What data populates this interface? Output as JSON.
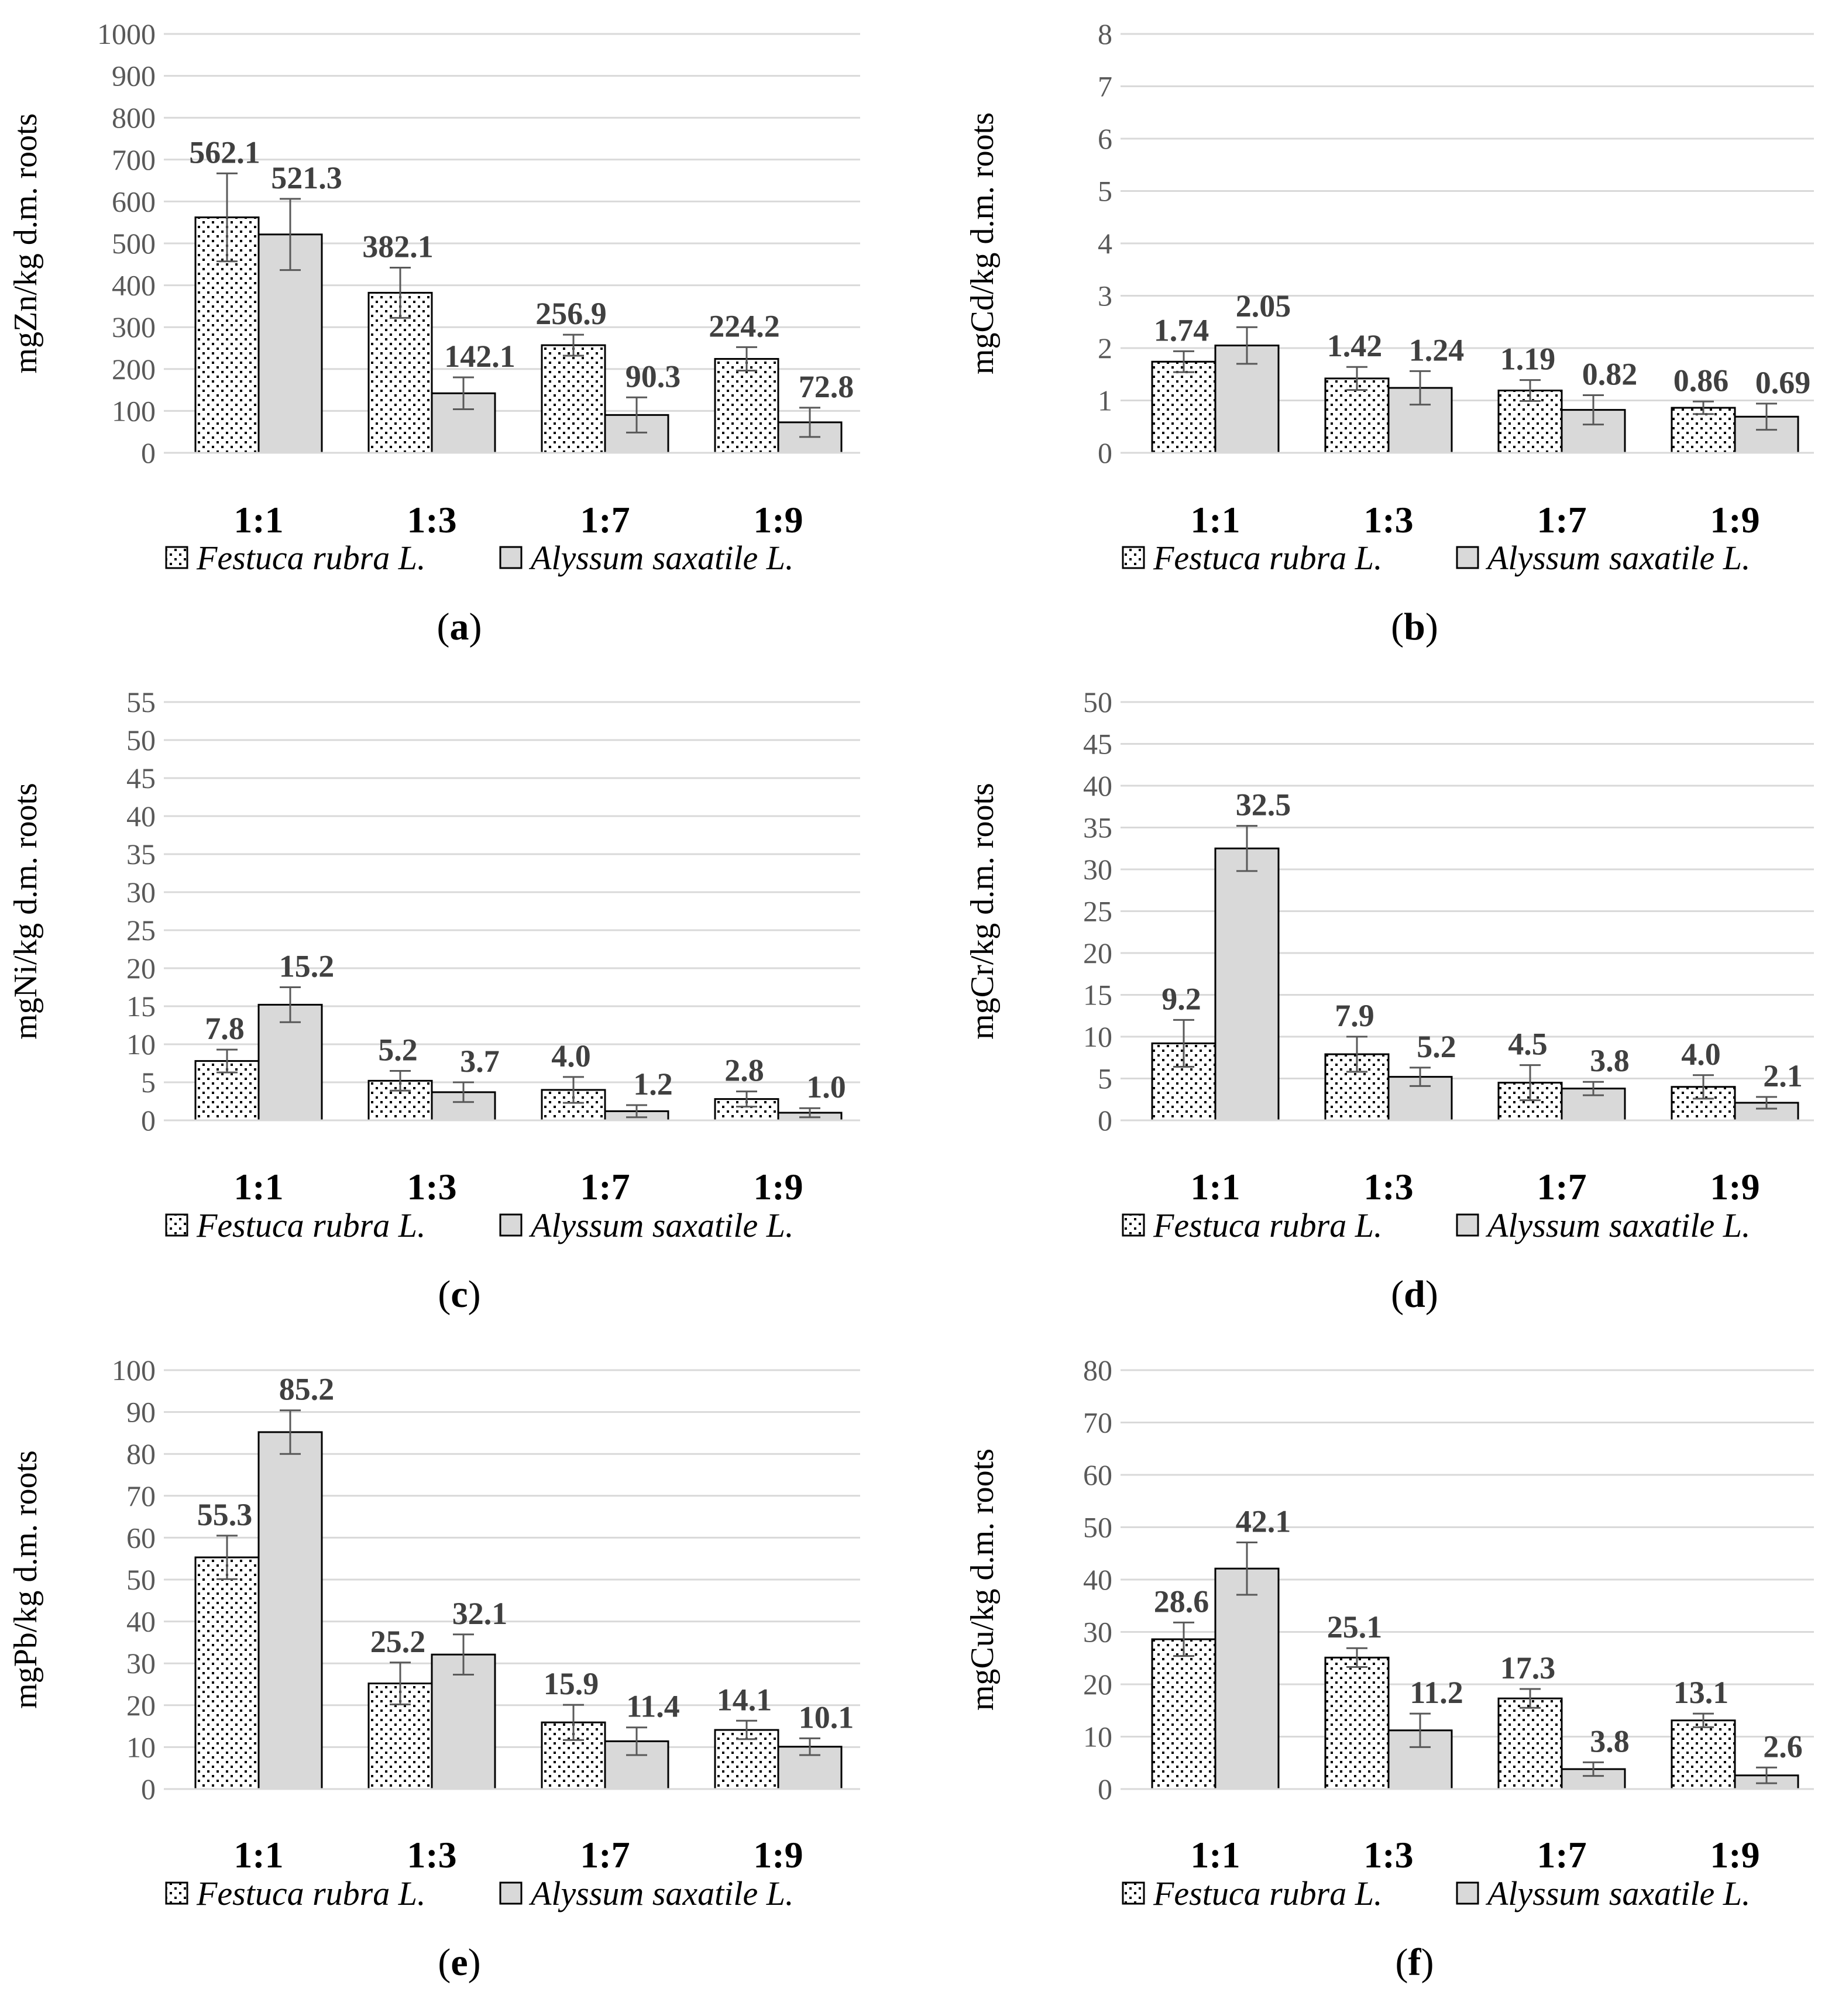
{
  "legend": {
    "series1": "Festuca rubra L.",
    "series2": "Alyssum saxatile L."
  },
  "colors": {
    "series2_fill": "#d9d9d9",
    "dots": "#000000",
    "grid": "#d9d9d9",
    "error": "#595959"
  },
  "chart_data": [
    {
      "type": "bar",
      "panel_label": "a",
      "ylabel": "mgZn/kg d.m. roots",
      "ylim": [
        0,
        1000
      ],
      "ytick_step": 100,
      "yticks": [
        "0",
        "100",
        "200",
        "300",
        "400",
        "500",
        "600",
        "700",
        "800",
        "900",
        "1000"
      ],
      "categories": [
        "1:1",
        "1:3",
        "1:7",
        "1:9"
      ],
      "series": [
        {
          "name": "Festuca rubra L.",
          "values": [
            562.1,
            382.1,
            256.9,
            224.2
          ],
          "labels": [
            "562.1",
            "382.1",
            "256.9",
            "224.2"
          ],
          "errors": [
            105,
            60,
            25,
            28
          ]
        },
        {
          "name": "Alyssum saxatile L.",
          "values": [
            521.3,
            142.1,
            90.3,
            72.8
          ],
          "labels": [
            "521.3",
            "142.1",
            "90.3",
            "72.8"
          ],
          "errors": [
            85,
            38,
            42,
            35
          ]
        }
      ]
    },
    {
      "type": "bar",
      "panel_label": "b",
      "ylabel": "mgCd/kg d.m. roots",
      "ylim": [
        0,
        8
      ],
      "ytick_step": 1,
      "yticks": [
        "0",
        "1",
        "2",
        "3",
        "4",
        "5",
        "6",
        "7",
        "8"
      ],
      "categories": [
        "1:1",
        "1:3",
        "1:7",
        "1:9"
      ],
      "series": [
        {
          "name": "Festuca rubra L.",
          "values": [
            1.74,
            1.42,
            1.19,
            0.86
          ],
          "labels": [
            "1.74",
            "1.42",
            "1.19",
            "0.86"
          ],
          "errors": [
            0.2,
            0.22,
            0.2,
            0.12
          ]
        },
        {
          "name": "Alyssum saxatile L.",
          "values": [
            2.05,
            1.24,
            0.82,
            0.69
          ],
          "labels": [
            "2.05",
            "1.24",
            "0.82",
            "0.69"
          ],
          "errors": [
            0.35,
            0.32,
            0.28,
            0.25
          ]
        }
      ]
    },
    {
      "type": "bar",
      "panel_label": "c",
      "ylabel": "mgNi/kg d.m. roots",
      "ylim": [
        0,
        55
      ],
      "ytick_step": 5,
      "yticks": [
        "0",
        "5",
        "10",
        "15",
        "20",
        "25",
        "30",
        "35",
        "40",
        "45",
        "50",
        "55"
      ],
      "categories": [
        "1:1",
        "1:3",
        "1:7",
        "1:9"
      ],
      "series": [
        {
          "name": "Festuca rubra L.",
          "values": [
            7.8,
            5.2,
            4.0,
            2.8
          ],
          "labels": [
            "7.8",
            "5.2",
            "4.0",
            "2.8"
          ],
          "errors": [
            1.5,
            1.3,
            1.7,
            1.0
          ]
        },
        {
          "name": "Alyssum saxatile L.",
          "values": [
            15.2,
            3.7,
            1.2,
            1.0
          ],
          "labels": [
            "15.2",
            "3.7",
            "1.2",
            "1.0"
          ],
          "errors": [
            2.3,
            1.3,
            0.8,
            0.6
          ]
        }
      ]
    },
    {
      "type": "bar",
      "panel_label": "d",
      "ylabel": "mgCr/kg d.m. roots",
      "ylim": [
        0,
        50
      ],
      "ytick_step": 5,
      "yticks": [
        "0",
        "5",
        "10",
        "15",
        "20",
        "25",
        "30",
        "35",
        "40",
        "45",
        "50"
      ],
      "categories": [
        "1:1",
        "1:3",
        "1:7",
        "1:9"
      ],
      "series": [
        {
          "name": "Festuca rubra L.",
          "values": [
            9.2,
            7.9,
            4.5,
            4.0
          ],
          "labels": [
            "9.2",
            "7.9",
            "4.5",
            "4.0"
          ],
          "errors": [
            2.8,
            2.1,
            2.1,
            1.4
          ]
        },
        {
          "name": "Alyssum saxatile L.",
          "values": [
            32.5,
            5.2,
            3.8,
            2.1
          ],
          "labels": [
            "32.5",
            "5.2",
            "3.8",
            "2.1"
          ],
          "errors": [
            2.7,
            1.1,
            0.8,
            0.7
          ]
        }
      ]
    },
    {
      "type": "bar",
      "panel_label": "e",
      "ylabel": "mgPb/kg d.m. roots",
      "ylim": [
        0,
        100
      ],
      "ytick_step": 10,
      "yticks": [
        "0",
        "10",
        "20",
        "30",
        "40",
        "50",
        "60",
        "70",
        "80",
        "90",
        "100"
      ],
      "categories": [
        "1:1",
        "1:3",
        "1:7",
        "1:9"
      ],
      "series": [
        {
          "name": "Festuca rubra L.",
          "values": [
            55.3,
            25.2,
            15.9,
            14.1
          ],
          "labels": [
            "55.3",
            "25.2",
            "15.9",
            "14.1"
          ],
          "errors": [
            5.2,
            5.0,
            4.2,
            2.2
          ]
        },
        {
          "name": "Alyssum saxatile L.",
          "values": [
            85.2,
            32.1,
            11.4,
            10.1
          ],
          "labels": [
            "85.2",
            "32.1",
            "11.4",
            "10.1"
          ],
          "errors": [
            5.2,
            4.8,
            3.3,
            2.0
          ]
        }
      ]
    },
    {
      "type": "bar",
      "panel_label": "f",
      "ylabel": "mgCu/kg d.m. roots",
      "ylim": [
        0,
        80
      ],
      "ytick_step": 10,
      "yticks": [
        "0",
        "10",
        "20",
        "30",
        "40",
        "50",
        "60",
        "70",
        "80"
      ],
      "categories": [
        "1:1",
        "1:3",
        "1:7",
        "1:9"
      ],
      "series": [
        {
          "name": "Festuca rubra L.",
          "values": [
            28.6,
            25.1,
            17.3,
            13.1
          ],
          "labels": [
            "28.6",
            "25.1",
            "17.3",
            "13.1"
          ],
          "errors": [
            3.2,
            1.8,
            1.8,
            1.3
          ]
        },
        {
          "name": "Alyssum saxatile L.",
          "values": [
            42.1,
            11.2,
            3.8,
            2.6
          ],
          "labels": [
            "42.1",
            "11.2",
            "3.8",
            "2.6"
          ],
          "errors": [
            5.0,
            3.2,
            1.3,
            1.5
          ]
        }
      ]
    }
  ]
}
